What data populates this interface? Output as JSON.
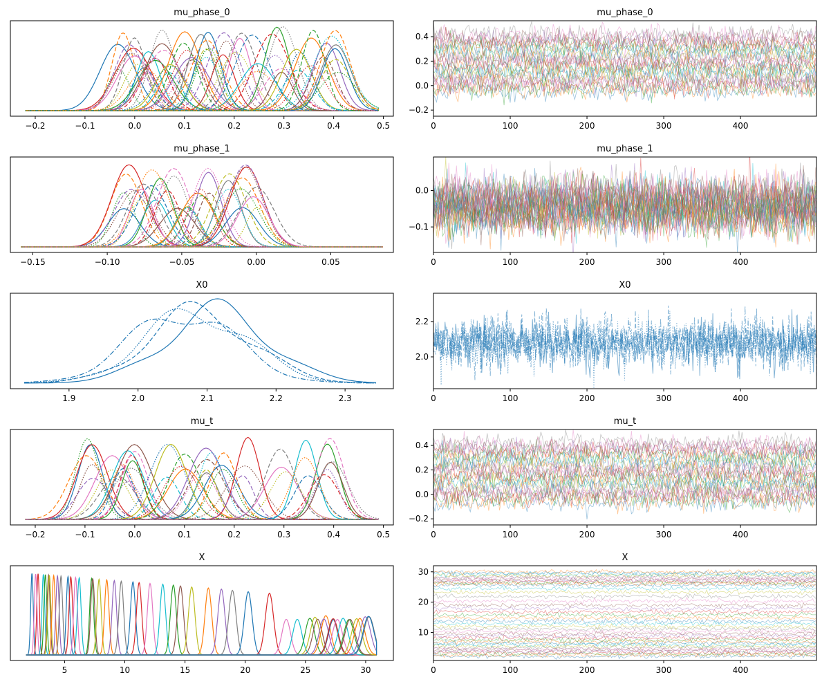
{
  "palette": [
    "#1f77b4",
    "#ff7f0e",
    "#2ca02c",
    "#d62728",
    "#9467bd",
    "#8c564b",
    "#e377c2",
    "#7f7f7f",
    "#bcbd22",
    "#17becf"
  ],
  "chart_data": [
    {
      "type": "line",
      "panel": "density",
      "title": "mu_phase_0",
      "xlim": [
        -0.25,
        0.52
      ],
      "xticks": [
        -0.2,
        -0.1,
        0.0,
        0.1,
        0.2,
        0.3,
        0.4,
        0.5
      ],
      "xtick_labels": [
        "−0.2",
        "−0.1",
        "0.0",
        "0.1",
        "0.2",
        "0.3",
        "0.4",
        "0.5"
      ],
      "density_peak_locations": [
        -0.03,
        -0.01,
        0.0,
        0.02,
        0.04,
        0.06,
        0.07,
        0.1,
        0.11,
        0.14,
        0.15,
        0.18,
        0.21,
        0.24,
        0.28,
        0.3,
        0.33,
        0.36,
        0.38,
        0.4,
        0.41
      ],
      "support_range": [
        -0.22,
        0.49
      ]
    },
    {
      "type": "line",
      "panel": "trace",
      "title": "mu_phase_0",
      "xlim": [
        0,
        499
      ],
      "ylim": [
        -0.25,
        0.53
      ],
      "xticks": [
        0,
        100,
        200,
        300,
        400
      ],
      "xtick_labels": [
        "0",
        "100",
        "200",
        "300",
        "400"
      ],
      "yticks": [
        -0.2,
        0.0,
        0.2,
        0.4
      ],
      "ytick_labels": [
        "−0.2",
        "0.0",
        "0.2",
        "0.4"
      ],
      "band_center_range": [
        -0.05,
        0.42
      ],
      "band_noise": 0.04
    },
    {
      "type": "line",
      "panel": "density",
      "title": "mu_phase_1",
      "xlim": [
        -0.165,
        0.092
      ],
      "xticks": [
        -0.15,
        -0.1,
        -0.05,
        0.0,
        0.05
      ],
      "xtick_labels": [
        "−0.15",
        "−0.10",
        "−0.05",
        "0.00",
        "0.05"
      ],
      "density_peak_locations": [
        -0.088,
        -0.083,
        -0.078,
        -0.07,
        -0.062,
        -0.055,
        -0.045,
        -0.038,
        -0.03,
        -0.02,
        -0.01,
        -0.005,
        0.0
      ],
      "support_range": [
        -0.158,
        0.085
      ]
    },
    {
      "type": "line",
      "panel": "trace",
      "title": "mu_phase_1",
      "xlim": [
        0,
        499
      ],
      "ylim": [
        -0.17,
        0.092
      ],
      "xticks": [
        0,
        100,
        200,
        300,
        400
      ],
      "xtick_labels": [
        "0",
        "100",
        "200",
        "300",
        "400"
      ],
      "yticks": [
        -0.1,
        0.0
      ],
      "ytick_labels": [
        "−0.1",
        "0.0"
      ],
      "band_center_range": [
        -0.085,
        0.0
      ],
      "band_noise": 0.03
    },
    {
      "type": "line",
      "panel": "density",
      "title": "X0",
      "xlim": [
        1.815,
        2.37
      ],
      "xticks": [
        1.9,
        2.0,
        2.1,
        2.2,
        2.3
      ],
      "xtick_labels": [
        "1.9",
        "2.0",
        "2.1",
        "2.2",
        "2.3"
      ],
      "series": [
        {
          "style": "solid",
          "peak": 2.115
        },
        {
          "style": "dashed",
          "peak": 2.09
        },
        {
          "style": "dotted",
          "peak": 2.085
        },
        {
          "style": "dashdot",
          "peak": 2.065
        }
      ],
      "support_range": [
        1.835,
        2.345
      ]
    },
    {
      "type": "line",
      "panel": "trace",
      "title": "X0",
      "xlim": [
        0,
        499
      ],
      "ylim": [
        1.82,
        2.36
      ],
      "xticks": [
        0,
        100,
        200,
        300,
        400
      ],
      "xtick_labels": [
        "0",
        "100",
        "200",
        "300",
        "400"
      ],
      "yticks": [
        2.0,
        2.2
      ],
      "ytick_labels": [
        "2.0",
        "2.2"
      ],
      "band_center_range": [
        2.08,
        2.08
      ],
      "band_noise": 0.07
    },
    {
      "type": "line",
      "panel": "density",
      "title": "mu_t",
      "xlim": [
        -0.25,
        0.52
      ],
      "xticks": [
        -0.2,
        -0.1,
        0.0,
        0.1,
        0.2,
        0.3,
        0.4,
        0.5
      ],
      "xtick_labels": [
        "−0.2",
        "−0.1",
        "0.0",
        "0.1",
        "0.2",
        "0.3",
        "0.4",
        "0.5"
      ],
      "density_peak_locations": [
        -0.09,
        -0.08,
        -0.04,
        -0.02,
        -0.01,
        0.0,
        0.07,
        0.1,
        0.14,
        0.15,
        0.18,
        0.22,
        0.3,
        0.35,
        0.38,
        0.4
      ],
      "support_range": [
        -0.22,
        0.49
      ]
    },
    {
      "type": "line",
      "panel": "trace",
      "title": "mu_t",
      "xlim": [
        0,
        499
      ],
      "ylim": [
        -0.25,
        0.53
      ],
      "xticks": [
        0,
        100,
        200,
        300,
        400
      ],
      "xtick_labels": [
        "0",
        "100",
        "200",
        "300",
        "400"
      ],
      "yticks": [
        -0.2,
        0.0,
        0.2,
        0.4
      ],
      "ytick_labels": [
        "−0.2",
        "0.0",
        "0.2",
        "0.4"
      ],
      "band_center_range": [
        -0.07,
        0.42
      ],
      "band_noise": 0.04
    },
    {
      "type": "line",
      "panel": "density",
      "title": "X",
      "xlim": [
        0.5,
        32.3
      ],
      "xticks": [
        5,
        10,
        15,
        20,
        25,
        30
      ],
      "xtick_labels": [
        "5",
        "10",
        "15",
        "20",
        "25",
        "30"
      ],
      "density_peak_locations": [
        2.2,
        2.5,
        2.8,
        3.1,
        3.4,
        3.7,
        4.0,
        4.3,
        4.6,
        4.9,
        5.3,
        5.7,
        6.1,
        6.5,
        7.0,
        7.5,
        8.0,
        8.6,
        9.2,
        9.9,
        10.6,
        11.3,
        12.1,
        12.9,
        13.8,
        14.7,
        15.7,
        16.7,
        17.8,
        19.0,
        20.4,
        21.9,
        23.3,
        24.5,
        25.5,
        25.8,
        26.1,
        26.4,
        26.7,
        27.0,
        27.3,
        27.6,
        27.9,
        28.2,
        28.5,
        28.8,
        29.1,
        29.4,
        29.7,
        30.0,
        30.4
      ],
      "support_range": [
        1.8,
        30.9
      ]
    },
    {
      "type": "line",
      "panel": "trace",
      "title": "X",
      "xlim": [
        0,
        499
      ],
      "ylim": [
        0.8,
        32.0
      ],
      "xticks": [
        0,
        100,
        200,
        300,
        400
      ],
      "xtick_labels": [
        "0",
        "100",
        "200",
        "300",
        "400"
      ],
      "yticks": [
        10,
        20,
        30
      ],
      "ytick_labels": [
        "10",
        "20",
        "30"
      ],
      "band_center_levels": [
        2.2,
        2.6,
        3.0,
        3.4,
        3.8,
        4.2,
        4.6,
        5.0,
        5.5,
        6.0,
        6.5,
        7.0,
        7.6,
        8.2,
        8.9,
        9.6,
        10.4,
        11.2,
        12.0,
        12.9,
        13.8,
        14.8,
        15.8,
        16.8,
        17.9,
        19.0,
        20.4,
        21.9,
        23.3,
        24.5,
        25.6,
        26.0,
        26.4,
        26.8,
        27.2,
        27.6,
        28.0,
        28.4,
        28.8,
        29.2,
        29.6,
        30.0
      ],
      "band_noise": 0.35
    }
  ]
}
